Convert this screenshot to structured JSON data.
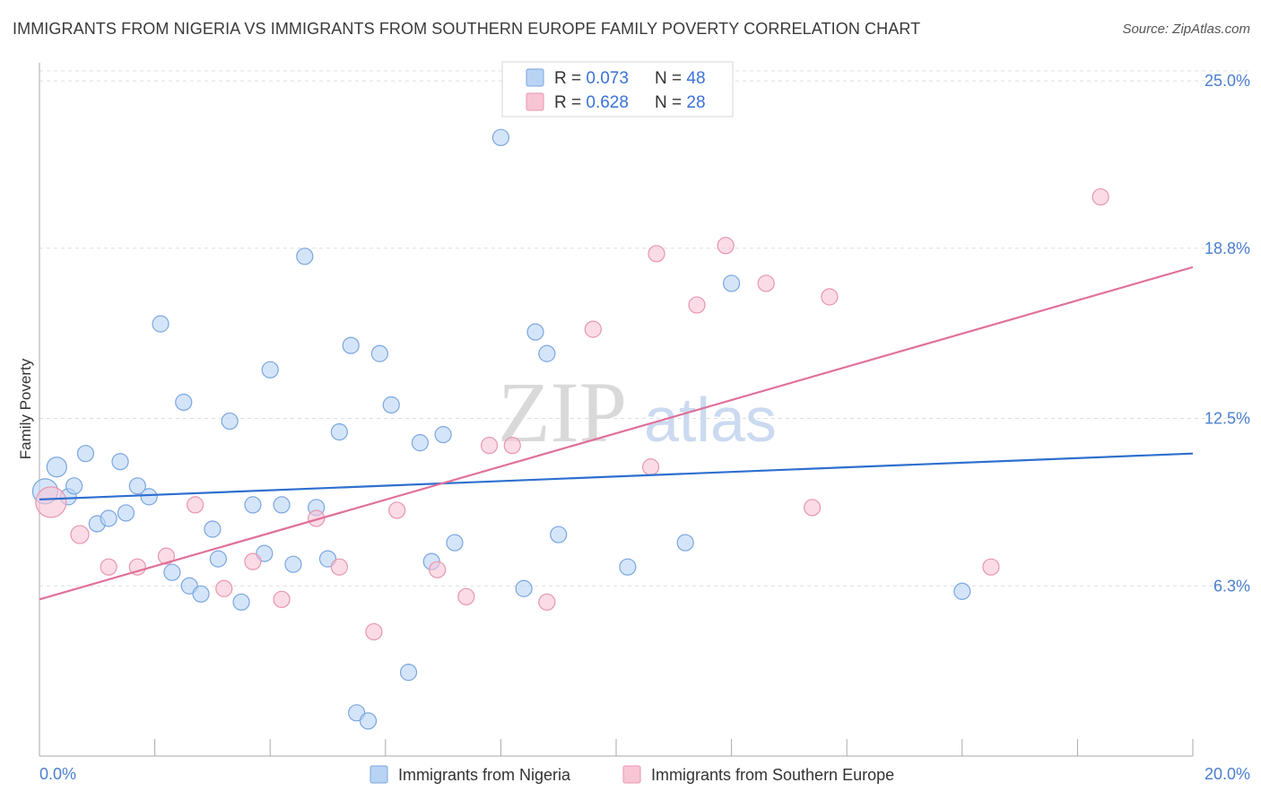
{
  "header": {
    "title": "IMMIGRANTS FROM NIGERIA VS IMMIGRANTS FROM SOUTHERN EUROPE FAMILY POVERTY CORRELATION CHART",
    "source": "Source: ZipAtlas.com"
  },
  "watermark": {
    "zip": "ZIP",
    "atlas": "atlas"
  },
  "colors": {
    "nigeria_fill": "#b9d3f5",
    "nigeria_stroke": "#7aa6e0",
    "nigeria_line": "#2e6fcf",
    "seurope_fill": "#f8c5d5",
    "seurope_stroke": "#e895b0",
    "seurope_line": "#e0709a"
  },
  "legend": {
    "rows": [
      {
        "r_label": "R = ",
        "r_value": "0.073",
        "n_label": "N = ",
        "n_value": "48"
      },
      {
        "r_label": "R = ",
        "r_value": "0.628",
        "n_label": "N = ",
        "n_value": "28"
      }
    ]
  },
  "chart_data": {
    "type": "scatter",
    "title": "IMMIGRANTS FROM NIGERIA VS IMMIGRANTS FROM SOUTHERN EUROPE FAMILY POVERTY CORRELATION CHART",
    "xlabel": "",
    "ylabel": "Family Poverty",
    "xlim": [
      0,
      20
    ],
    "ylim": [
      0,
      25.6
    ],
    "x_tick_labels": {
      "min": "0.0%",
      "max": "20.0%"
    },
    "y_ticks": [
      {
        "value": 6.3,
        "label": "6.3%"
      },
      {
        "value": 12.5,
        "label": "12.5%"
      },
      {
        "value": 18.8,
        "label": "18.8%"
      },
      {
        "value": 25.0,
        "label": "25.0%"
      }
    ],
    "grid": true,
    "legend_position": "top-center",
    "series": [
      {
        "name": "Immigrants from Nigeria",
        "r": 0.073,
        "n": 48,
        "trend": {
          "x0": 0.0,
          "y0": 9.5,
          "x1": 20.0,
          "y1": 11.2
        },
        "points": [
          {
            "x": 0.1,
            "y": 9.8,
            "s": 14
          },
          {
            "x": 0.3,
            "y": 10.7,
            "s": 11
          },
          {
            "x": 0.5,
            "y": 9.6,
            "s": 9
          },
          {
            "x": 0.6,
            "y": 10.0,
            "s": 9
          },
          {
            "x": 0.8,
            "y": 11.2,
            "s": 9
          },
          {
            "x": 1.0,
            "y": 8.6,
            "s": 9
          },
          {
            "x": 1.2,
            "y": 8.8,
            "s": 9
          },
          {
            "x": 1.4,
            "y": 10.9,
            "s": 9
          },
          {
            "x": 1.5,
            "y": 9.0,
            "s": 9
          },
          {
            "x": 1.7,
            "y": 10.0,
            "s": 9
          },
          {
            "x": 1.9,
            "y": 9.6,
            "s": 9
          },
          {
            "x": 2.1,
            "y": 16.0,
            "s": 9
          },
          {
            "x": 2.3,
            "y": 6.8,
            "s": 9
          },
          {
            "x": 2.5,
            "y": 13.1,
            "s": 9
          },
          {
            "x": 2.6,
            "y": 6.3,
            "s": 9
          },
          {
            "x": 2.8,
            "y": 6.0,
            "s": 9
          },
          {
            "x": 3.0,
            "y": 8.4,
            "s": 9
          },
          {
            "x": 3.1,
            "y": 7.3,
            "s": 9
          },
          {
            "x": 3.3,
            "y": 12.4,
            "s": 9
          },
          {
            "x": 3.5,
            "y": 5.7,
            "s": 9
          },
          {
            "x": 3.7,
            "y": 9.3,
            "s": 9
          },
          {
            "x": 3.9,
            "y": 7.5,
            "s": 9
          },
          {
            "x": 4.0,
            "y": 14.3,
            "s": 9
          },
          {
            "x": 4.2,
            "y": 9.3,
            "s": 9
          },
          {
            "x": 4.4,
            "y": 7.1,
            "s": 9
          },
          {
            "x": 4.6,
            "y": 18.5,
            "s": 9
          },
          {
            "x": 4.8,
            "y": 9.2,
            "s": 9
          },
          {
            "x": 5.0,
            "y": 7.3,
            "s": 9
          },
          {
            "x": 5.2,
            "y": 12.0,
            "s": 9
          },
          {
            "x": 5.4,
            "y": 15.2,
            "s": 9
          },
          {
            "x": 5.5,
            "y": 1.6,
            "s": 9
          },
          {
            "x": 5.7,
            "y": 1.3,
            "s": 9
          },
          {
            "x": 5.9,
            "y": 14.9,
            "s": 9
          },
          {
            "x": 6.1,
            "y": 13.0,
            "s": 9
          },
          {
            "x": 6.4,
            "y": 3.1,
            "s": 9
          },
          {
            "x": 6.6,
            "y": 11.6,
            "s": 9
          },
          {
            "x": 6.8,
            "y": 7.2,
            "s": 9
          },
          {
            "x": 7.0,
            "y": 11.9,
            "s": 9
          },
          {
            "x": 7.2,
            "y": 7.9,
            "s": 9
          },
          {
            "x": 8.0,
            "y": 22.9,
            "s": 9
          },
          {
            "x": 8.4,
            "y": 6.2,
            "s": 9
          },
          {
            "x": 8.6,
            "y": 15.7,
            "s": 9
          },
          {
            "x": 8.8,
            "y": 14.9,
            "s": 9
          },
          {
            "x": 9.0,
            "y": 8.2,
            "s": 9
          },
          {
            "x": 10.2,
            "y": 7.0,
            "s": 9
          },
          {
            "x": 11.2,
            "y": 7.9,
            "s": 9
          },
          {
            "x": 12.0,
            "y": 17.5,
            "s": 9
          },
          {
            "x": 16.0,
            "y": 6.1,
            "s": 9
          }
        ]
      },
      {
        "name": "Immigrants from Southern Europe",
        "r": 0.628,
        "n": 28,
        "trend": {
          "x0": 0.0,
          "y0": 5.8,
          "x1": 20.0,
          "y1": 18.1
        },
        "points": [
          {
            "x": 0.2,
            "y": 9.4,
            "s": 17
          },
          {
            "x": 0.7,
            "y": 8.2,
            "s": 10
          },
          {
            "x": 1.2,
            "y": 7.0,
            "s": 9
          },
          {
            "x": 1.7,
            "y": 7.0,
            "s": 9
          },
          {
            "x": 2.2,
            "y": 7.4,
            "s": 9
          },
          {
            "x": 2.7,
            "y": 9.3,
            "s": 9
          },
          {
            "x": 3.2,
            "y": 6.2,
            "s": 9
          },
          {
            "x": 3.7,
            "y": 7.2,
            "s": 9
          },
          {
            "x": 4.2,
            "y": 5.8,
            "s": 9
          },
          {
            "x": 4.8,
            "y": 8.8,
            "s": 9
          },
          {
            "x": 5.2,
            "y": 7.0,
            "s": 9
          },
          {
            "x": 5.8,
            "y": 4.6,
            "s": 9
          },
          {
            "x": 6.2,
            "y": 9.1,
            "s": 9
          },
          {
            "x": 6.9,
            "y": 6.9,
            "s": 9
          },
          {
            "x": 7.4,
            "y": 5.9,
            "s": 9
          },
          {
            "x": 7.8,
            "y": 11.5,
            "s": 9
          },
          {
            "x": 8.2,
            "y": 11.5,
            "s": 9
          },
          {
            "x": 8.8,
            "y": 5.7,
            "s": 9
          },
          {
            "x": 9.6,
            "y": 15.8,
            "s": 9
          },
          {
            "x": 10.6,
            "y": 10.7,
            "s": 9
          },
          {
            "x": 10.7,
            "y": 18.6,
            "s": 9
          },
          {
            "x": 11.4,
            "y": 16.7,
            "s": 9
          },
          {
            "x": 11.9,
            "y": 18.9,
            "s": 9
          },
          {
            "x": 12.6,
            "y": 17.5,
            "s": 9
          },
          {
            "x": 13.4,
            "y": 9.2,
            "s": 9
          },
          {
            "x": 13.7,
            "y": 17.0,
            "s": 9
          },
          {
            "x": 16.5,
            "y": 7.0,
            "s": 9
          },
          {
            "x": 18.4,
            "y": 20.7,
            "s": 9
          }
        ]
      }
    ]
  }
}
